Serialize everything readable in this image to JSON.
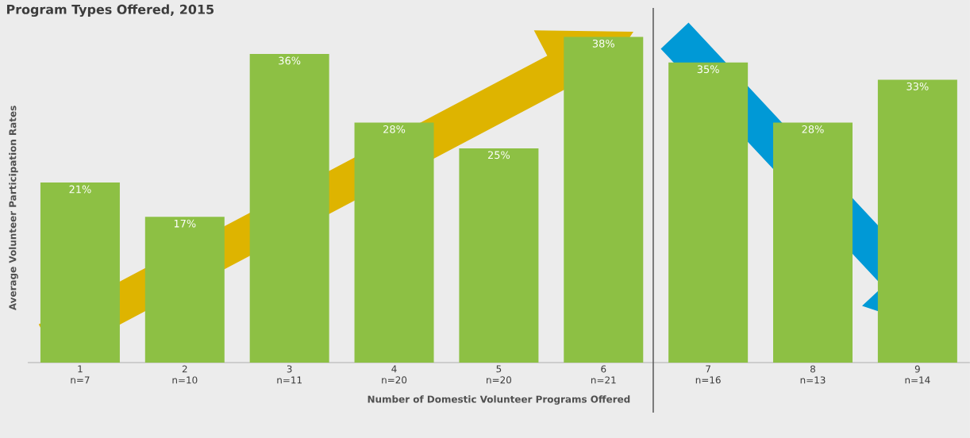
{
  "chart_data": {
    "type": "bar",
    "title": "Program Types Offered, 2015",
    "xlabel": "Number of Domestic Volunteer Programs Offered",
    "ylabel": "Average Volunteer Participation Rates",
    "categories": [
      "1 n=7",
      "2 n=10",
      "3 n=11",
      "4 n=20",
      "5 n=20",
      "6 n=21",
      "7 n=16",
      "8 n=13",
      "9 n=14"
    ],
    "values": [
      21,
      17,
      36,
      28,
      25,
      38,
      35,
      28,
      33
    ],
    "value_labels": [
      "21%",
      "17%",
      "36%",
      "28%",
      "25%",
      "38%",
      "35%",
      "28%",
      "33%"
    ],
    "color": "#8dc044",
    "ylim": [
      0,
      42.3
    ]
  }
}
